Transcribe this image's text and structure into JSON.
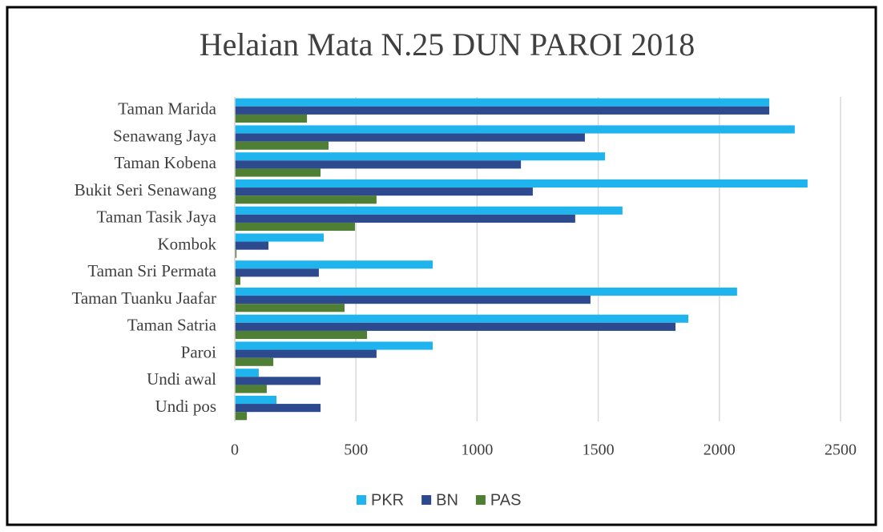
{
  "chart_data": {
    "type": "barh",
    "title": "Helaian Mata N.25 DUN PAROI 2018",
    "categories": [
      "Taman Marida",
      "Senawang Jaya",
      "Taman Kobena",
      "Bukit Seri Senawang",
      "Taman Tasik Jaya",
      "Kombok",
      "Taman Sri Permata",
      "Taman Tuanku Jaafar",
      "Taman Satria",
      "Paroi",
      "Undi awal",
      "Undi pos"
    ],
    "series": [
      {
        "name": "PKR",
        "color": "#1fb4ee",
        "values": [
          2206,
          2311,
          1528,
          2364,
          1600,
          367,
          817,
          2073,
          1872,
          817,
          99,
          172
        ]
      },
      {
        "name": "BN",
        "color": "#2e4a8f",
        "values": [
          2206,
          1445,
          1181,
          1230,
          1405,
          139,
          347,
          1468,
          1819,
          585,
          354,
          354
        ]
      },
      {
        "name": "PAS",
        "color": "#4e7f35",
        "values": [
          298,
          387,
          354,
          585,
          496,
          7,
          23,
          453,
          546,
          159,
          132,
          50
        ]
      }
    ],
    "xlim": [
      0,
      2500
    ],
    "xticks": [
      0,
      500,
      1000,
      1500,
      2000,
      2500
    ],
    "grid": true,
    "legend": "bottom"
  }
}
